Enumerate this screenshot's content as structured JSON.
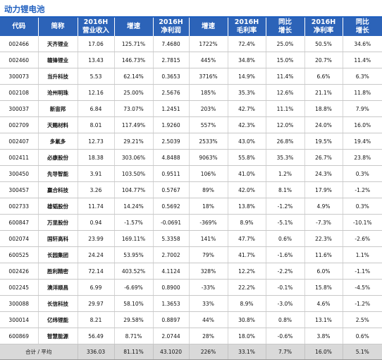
{
  "title": "动力锂电池",
  "headers": [
    {
      "l1": "代码",
      "l2": ""
    },
    {
      "l1": "简称",
      "l2": ""
    },
    {
      "l1": "2016H",
      "l2": "营业收入"
    },
    {
      "l1": "增速",
      "l2": ""
    },
    {
      "l1": "2016H",
      "l2": "净利润"
    },
    {
      "l1": "增速",
      "l2": ""
    },
    {
      "l1": "2016H",
      "l2": "毛利率"
    },
    {
      "l1": "同比",
      "l2": "增长"
    },
    {
      "l1": "2016H",
      "l2": "净利率"
    },
    {
      "l1": "同比",
      "l2": "增长"
    }
  ],
  "rows": [
    [
      "002466",
      "天齐锂业",
      "17.06",
      "125.71%",
      "7.4680",
      "1722%",
      "72.4%",
      "25.0%",
      "50.5%",
      "34.6%"
    ],
    [
      "002460",
      "赣锋锂业",
      "13.43",
      "146.73%",
      "2.7815",
      "445%",
      "34.8%",
      "15.0%",
      "20.7%",
      "11.4%"
    ],
    [
      "300073",
      "当升科技",
      "5.53",
      "62.14%",
      "0.3653",
      "3716%",
      "14.9%",
      "11.4%",
      "6.6%",
      "6.3%"
    ],
    [
      "002108",
      "沧州明珠",
      "12.16",
      "25.00%",
      "2.5676",
      "185%",
      "35.3%",
      "12.6%",
      "21.1%",
      "11.8%"
    ],
    [
      "300037",
      "新宙邦",
      "6.84",
      "73.07%",
      "1.2451",
      "203%",
      "42.7%",
      "11.1%",
      "18.8%",
      "7.9%"
    ],
    [
      "002709",
      "天赐材料",
      "8.01",
      "117.49%",
      "1.9260",
      "557%",
      "42.3%",
      "12.0%",
      "24.0%",
      "16.0%"
    ],
    [
      "002407",
      "多氟多",
      "12.73",
      "29.21%",
      "2.5039",
      "2533%",
      "43.0%",
      "26.8%",
      "19.5%",
      "19.4%"
    ],
    [
      "002411",
      "必康股份",
      "18.38",
      "303.06%",
      "4.8488",
      "9063%",
      "55.8%",
      "35.3%",
      "26.7%",
      "23.8%"
    ],
    [
      "300450",
      "先导智能",
      "3.91",
      "103.50%",
      "0.9511",
      "106%",
      "41.0%",
      "1.2%",
      "24.3%",
      "0.3%"
    ],
    [
      "300457",
      "赢合科技",
      "3.26",
      "104.77%",
      "0.5767",
      "89%",
      "42.0%",
      "8.1%",
      "17.9%",
      "-1.2%"
    ],
    [
      "002733",
      "雄韬股份",
      "11.74",
      "14.24%",
      "0.5692",
      "18%",
      "13.8%",
      "-1.2%",
      "4.9%",
      "0.3%"
    ],
    [
      "600847",
      "万里股份",
      "0.94",
      "-1.57%",
      "-0.0691",
      "-369%",
      "8.9%",
      "-5.1%",
      "-7.3%",
      "-10.1%"
    ],
    [
      "002074",
      "国轩高科",
      "23.99",
      "169.11%",
      "5.3358",
      "141%",
      "47.7%",
      "0.6%",
      "22.3%",
      "-2.6%"
    ],
    [
      "600525",
      "长园集团",
      "24.24",
      "53.95%",
      "2.7002",
      "79%",
      "41.7%",
      "-1.6%",
      "11.6%",
      "1.1%"
    ],
    [
      "002426",
      "胜利精密",
      "72.14",
      "403.52%",
      "4.1124",
      "328%",
      "12.2%",
      "-2.2%",
      "6.0%",
      "-1.1%"
    ],
    [
      "002245",
      "澳洋顺昌",
      "6.99",
      "-6.69%",
      "0.8900",
      "-33%",
      "22.2%",
      "-0.1%",
      "15.8%",
      "-4.5%"
    ],
    [
      "300088",
      "长信科技",
      "29.97",
      "58.10%",
      "1.3653",
      "33%",
      "8.9%",
      "-3.0%",
      "4.6%",
      "-1.2%"
    ],
    [
      "300014",
      "亿纬锂能",
      "8.21",
      "29.58%",
      "0.8897",
      "44%",
      "30.8%",
      "0.8%",
      "13.1%",
      "2.5%"
    ],
    [
      "600869",
      "智慧能源",
      "56.49",
      "8.71%",
      "2.0744",
      "28%",
      "18.0%",
      "-0.6%",
      "3.8%",
      "0.6%"
    ]
  ],
  "footer": {
    "label": "合计 / 平均",
    "values": [
      "336.03",
      "81.11%",
      "43.1020",
      "226%",
      "33.1%",
      "7.7%",
      "16.0%",
      "5.1%"
    ]
  }
}
